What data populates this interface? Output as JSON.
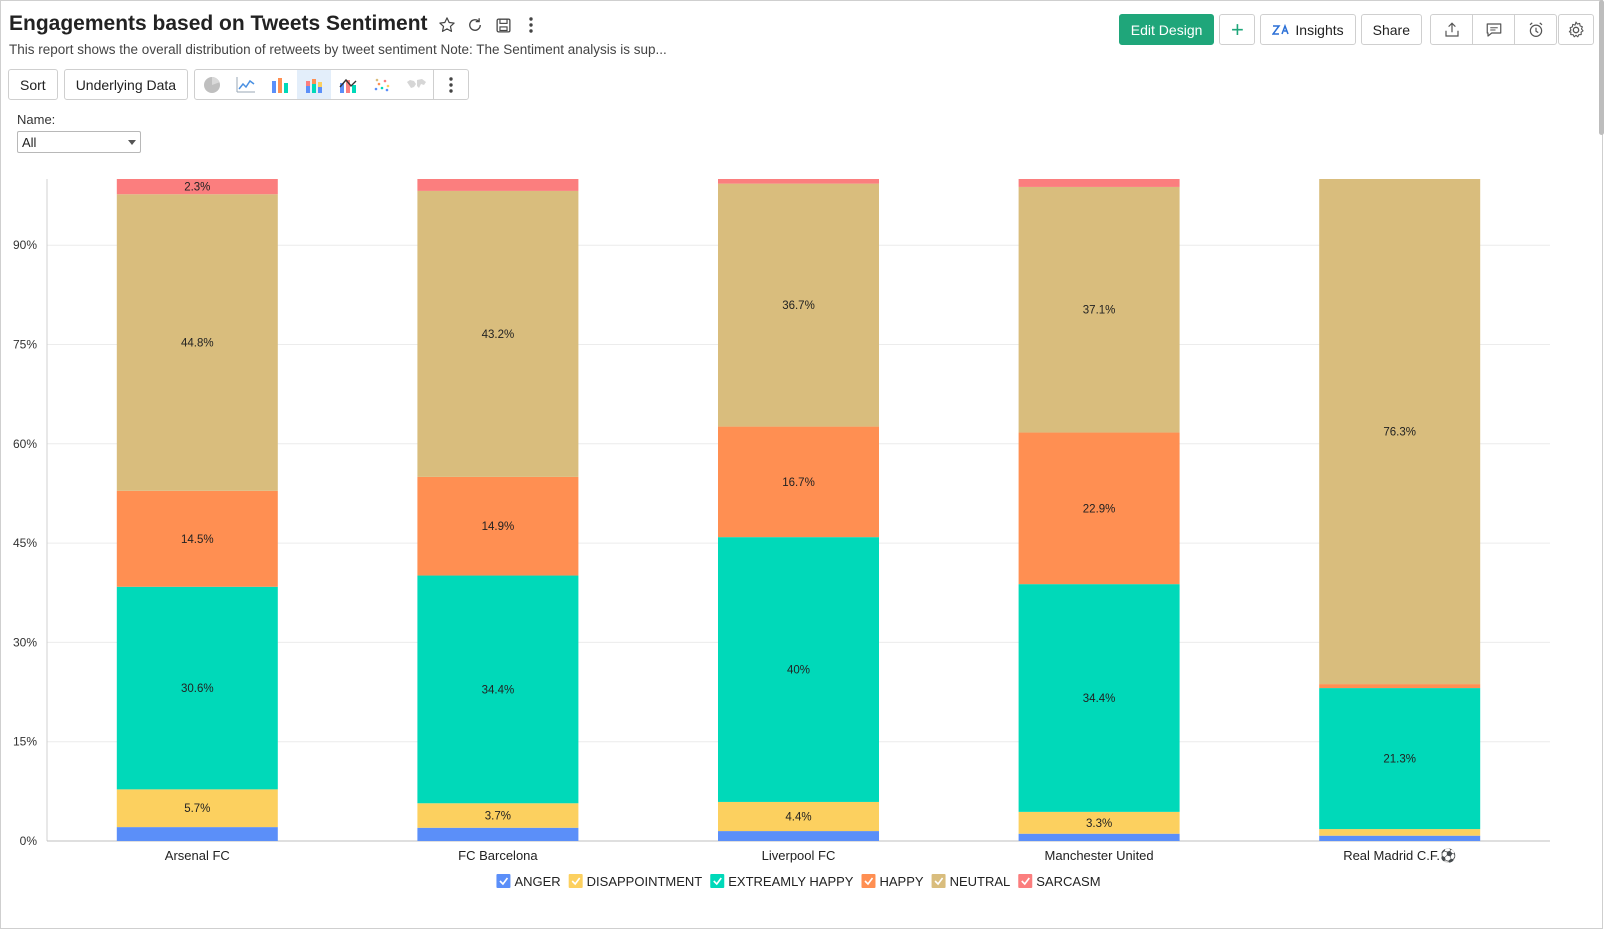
{
  "header": {
    "title": "Engagements based on Tweets Sentiment",
    "subtitle": "This report shows the overall distribution of retweets by tweet sentiment Note: The Sentiment analysis is sup..."
  },
  "topbar": {
    "edit_design": "Edit Design",
    "add": "+",
    "insights": "Insights",
    "share": "Share"
  },
  "toolbar": {
    "sort": "Sort",
    "underlying_data": "Underlying Data"
  },
  "filter": {
    "label": "Name:",
    "value": "All"
  },
  "colors": {
    "ANGER": "#5b8ff9",
    "DISAPPOINTMENT": "#fcd05f",
    "EXTREAMLY HAPPY": "#00d9b9",
    "HAPPY": "#ff8f52",
    "NEUTRAL": "#d9bd7d",
    "SARCASM": "#fb7e7e"
  },
  "chart_data": {
    "type": "bar",
    "stacked": "percent",
    "categories": [
      "Arsenal FC",
      "FC Barcelona",
      "Liverpool FC",
      "Manchester United",
      "Real Madrid C.F.⚽"
    ],
    "series": [
      {
        "name": "ANGER",
        "values": [
          2.1,
          2.0,
          1.5,
          1.1,
          0.8
        ]
      },
      {
        "name": "DISAPPOINTMENT",
        "values": [
          5.7,
          3.7,
          4.4,
          3.3,
          1.0
        ]
      },
      {
        "name": "EXTREAMLY HAPPY",
        "values": [
          30.6,
          34.4,
          40.0,
          34.4,
          21.3
        ]
      },
      {
        "name": "HAPPY",
        "values": [
          14.5,
          14.9,
          16.7,
          22.9,
          0.6
        ]
      },
      {
        "name": "NEUTRAL",
        "values": [
          44.8,
          43.2,
          36.7,
          37.1,
          76.3
        ]
      },
      {
        "name": "SARCASM",
        "values": [
          2.3,
          1.8,
          0.7,
          1.2,
          0.0
        ]
      }
    ],
    "data_labels": {
      "ANGER": [
        "",
        "",
        "",
        "",
        ""
      ],
      "DISAPPOINTMENT": [
        "5.7%",
        "3.7%",
        "4.4%",
        "3.3%",
        ""
      ],
      "EXTREAMLY HAPPY": [
        "30.6%",
        "34.4%",
        "40%",
        "34.4%",
        "21.3%"
      ],
      "HAPPY": [
        "14.5%",
        "14.9%",
        "16.7%",
        "22.9%",
        ""
      ],
      "NEUTRAL": [
        "44.8%",
        "43.2%",
        "36.7%",
        "37.1%",
        "76.3%"
      ],
      "SARCASM": [
        "2.3%",
        "",
        "",
        "",
        ""
      ]
    },
    "yticks": [
      0,
      15,
      30,
      45,
      60,
      75,
      90
    ],
    "ytick_labels": [
      "0%",
      "15%",
      "30%",
      "45%",
      "60%",
      "75%",
      "90%"
    ],
    "ylim": [
      0,
      100
    ],
    "legend": [
      "ANGER",
      "DISAPPOINTMENT",
      "EXTREAMLY HAPPY",
      "HAPPY",
      "NEUTRAL",
      "SARCASM"
    ],
    "legend_position": "bottom"
  }
}
